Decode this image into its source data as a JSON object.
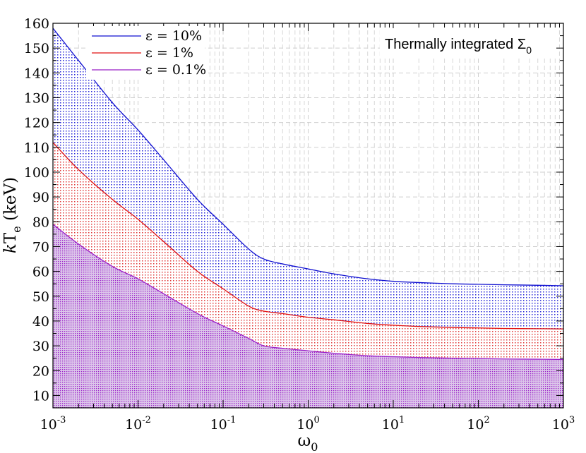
{
  "chart_data": {
    "type": "area",
    "title": "",
    "annotation": {
      "main": "Thermally integrated Σ",
      "sub": "0"
    },
    "xlabel": {
      "main": "ω",
      "sub": "0"
    },
    "ylabel": {
      "italic": "k",
      "main": "T",
      "sub": "e",
      "rest": " (keV)"
    },
    "xscale": "log",
    "xlim": [
      0.001,
      1000
    ],
    "ylim": [
      5,
      160
    ],
    "xticks": [
      {
        "base": "10",
        "exp": "-3",
        "value": 0.001
      },
      {
        "base": "10",
        "exp": "-2",
        "value": 0.01
      },
      {
        "base": "10",
        "exp": "-1",
        "value": 0.1
      },
      {
        "base": "10",
        "exp": "0",
        "value": 1
      },
      {
        "base": "10",
        "exp": "1",
        "value": 10
      },
      {
        "base": "10",
        "exp": "2",
        "value": 100
      },
      {
        "base": "10",
        "exp": "3",
        "value": 1000
      }
    ],
    "yticks": [
      "10",
      "20",
      "30",
      "40",
      "50",
      "60",
      "70",
      "80",
      "90",
      "100",
      "110",
      "120",
      "130",
      "140",
      "150",
      "160"
    ],
    "grid": true,
    "legend_position": "top-left",
    "x": [
      0.001,
      0.002,
      0.005,
      0.01,
      0.02,
      0.05,
      0.1,
      0.2,
      0.3,
      0.5,
      1,
      2,
      5,
      10,
      20,
      50,
      100,
      200,
      500,
      1000
    ],
    "series": [
      {
        "name": "ε = 10%",
        "color": "#1010d0",
        "values": [
          158,
          145,
          128,
          117,
          105,
          89,
          79,
          69,
          65,
          63,
          61,
          59,
          57,
          56,
          55.5,
          55,
          54.8,
          54.6,
          54.4,
          54.2
        ]
      },
      {
        "name": "ε = 1%",
        "color": "#e01010",
        "values": [
          112,
          101,
          89,
          81,
          72,
          60,
          53,
          46,
          44,
          43,
          41.5,
          40.5,
          39,
          38.3,
          37.8,
          37.4,
          37.2,
          37,
          36.9,
          36.8
        ]
      },
      {
        "name": "ε = 0.1%",
        "color": "#9a20c8",
        "values": [
          79,
          71,
          62,
          57,
          51,
          43,
          38,
          33,
          30,
          29,
          28,
          27,
          26,
          25.6,
          25.3,
          25,
          24.9,
          24.7,
          24.6,
          24.5
        ]
      }
    ]
  }
}
